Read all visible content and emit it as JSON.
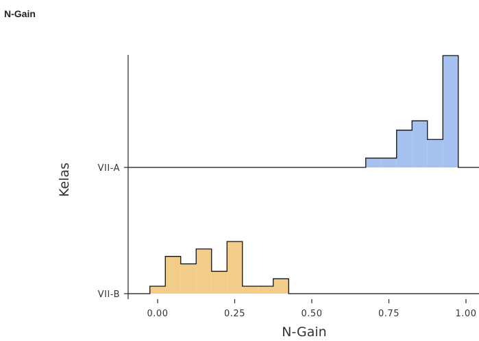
{
  "header": {
    "title": "N-Gain"
  },
  "chart_data": {
    "type": "ridgeline-histogram",
    "title": "N-Gain",
    "xlabel": "N-Gain",
    "ylabel": "Kelas",
    "x_ticks": [
      0.0,
      0.25,
      0.5,
      0.75,
      1.0
    ],
    "x_tick_labels": [
      "0.00",
      "0.25",
      "0.50",
      "0.75",
      "1.00"
    ],
    "xlim": [
      -0.08,
      1.05
    ],
    "categories": [
      "VII-A",
      "VII-B"
    ],
    "bin_width": 0.05,
    "series": [
      {
        "name": "VII-A",
        "color": "#a4c1f0",
        "bin_starts": [
          0.675,
          0.725,
          0.775,
          0.825,
          0.875,
          0.925,
          0.975
        ],
        "counts": [
          1,
          1,
          4,
          5,
          3,
          12,
          0
        ]
      },
      {
        "name": "VII-B",
        "color": "#f2cd8a",
        "bin_starts": [
          -0.025,
          0.025,
          0.075,
          0.125,
          0.175,
          0.225,
          0.275,
          0.325,
          0.375,
          0.425
        ],
        "counts": [
          1,
          5,
          4,
          6,
          3,
          7,
          1,
          1,
          2,
          0
        ]
      }
    ]
  }
}
